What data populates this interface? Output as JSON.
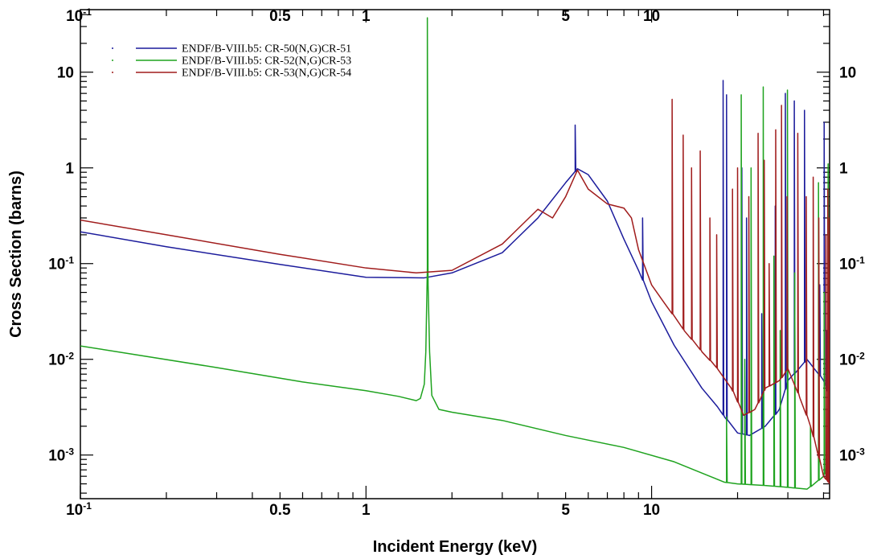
{
  "chart_data": {
    "type": "line",
    "title": "",
    "xlabel": "Incident Energy (keV)",
    "ylabel": "Cross Section (barns)",
    "x_scale": "log",
    "y_scale": "log",
    "xlim": [
      0.1,
      42
    ],
    "ylim": [
      0.00035,
      45
    ],
    "grid": false,
    "legend_position": "top-left",
    "x_ticks": [
      {
        "value": 0.1,
        "base": "10",
        "exp": "-1"
      },
      {
        "value": 0.5,
        "base": "0.5",
        "exp": ""
      },
      {
        "value": 1,
        "base": "1",
        "exp": ""
      },
      {
        "value": 5,
        "base": "5",
        "exp": ""
      },
      {
        "value": 10,
        "base": "10",
        "exp": ""
      }
    ],
    "y_ticks": [
      {
        "value": 0.001,
        "base": "10",
        "exp": "-3"
      },
      {
        "value": 0.01,
        "base": "10",
        "exp": "-2"
      },
      {
        "value": 0.1,
        "base": "10",
        "exp": "-1"
      },
      {
        "value": 1,
        "base": "1",
        "exp": ""
      },
      {
        "value": 10,
        "base": "10",
        "exp": ""
      }
    ],
    "series": [
      {
        "name": "ENDF/B-VIII.b5: CR-50(N,G)CR-51",
        "color": "#1c1c9c",
        "points": [
          [
            0.1,
            0.215
          ],
          [
            0.2,
            0.15
          ],
          [
            0.5,
            0.098
          ],
          [
            1.0,
            0.072
          ],
          [
            1.6,
            0.071
          ],
          [
            2.0,
            0.08
          ],
          [
            3.0,
            0.13
          ],
          [
            4.0,
            0.3
          ],
          [
            5.0,
            0.7
          ],
          [
            5.5,
            0.98
          ],
          [
            6.0,
            0.85
          ],
          [
            7.0,
            0.45
          ],
          [
            8.0,
            0.18
          ],
          [
            9.0,
            0.085
          ],
          [
            10,
            0.04
          ],
          [
            12,
            0.014
          ],
          [
            15,
            0.005
          ],
          [
            17,
            0.0032
          ],
          [
            18,
            0.0025
          ],
          [
            20,
            0.0017
          ],
          [
            22,
            0.0016
          ],
          [
            25,
            0.002
          ],
          [
            28,
            0.003
          ],
          [
            30,
            0.006
          ],
          [
            35,
            0.01
          ],
          [
            40,
            0.006
          ],
          [
            42,
            0.004
          ]
        ],
        "peaks": [
          [
            5.4,
            2.8
          ],
          [
            9.3,
            0.3
          ],
          [
            17.8,
            8.2
          ],
          [
            18.3,
            5.8
          ],
          [
            20.7,
            1.0
          ],
          [
            21.5,
            0.3
          ],
          [
            24.3,
            0.03
          ],
          [
            27.1,
            0.4
          ],
          [
            29.4,
            6.0
          ],
          [
            31.6,
            5.0
          ],
          [
            34.3,
            4.0
          ],
          [
            38.8,
            0.06
          ],
          [
            40.2,
            3.0
          ],
          [
            41.2,
            0.02
          ]
        ]
      },
      {
        "name": "ENDF/B-VIII.b5: CR-52(N,G)CR-53",
        "color": "#1fa31f",
        "points": [
          [
            0.1,
            0.0138
          ],
          [
            0.3,
            0.0082
          ],
          [
            0.6,
            0.0058
          ],
          [
            1.0,
            0.0047
          ],
          [
            1.3,
            0.0041
          ],
          [
            1.5,
            0.0037
          ],
          [
            1.55,
            0.0039
          ],
          [
            1.6,
            0.0055
          ],
          [
            1.62,
            0.012
          ],
          [
            1.64,
            0.09
          ],
          [
            1.65,
            0.06
          ],
          [
            1.67,
            0.012
          ],
          [
            1.7,
            0.0042
          ],
          [
            1.8,
            0.003
          ],
          [
            2.0,
            0.0028
          ],
          [
            3.0,
            0.0023
          ],
          [
            5.0,
            0.0016
          ],
          [
            8.0,
            0.0012
          ],
          [
            12,
            0.00085
          ],
          [
            16,
            0.0006
          ],
          [
            18,
            0.00052
          ],
          [
            20,
            0.0005
          ],
          [
            25,
            0.00048
          ],
          [
            30,
            0.00046
          ],
          [
            35,
            0.00044
          ],
          [
            40,
            0.0006
          ],
          [
            42,
            0.001
          ]
        ],
        "peaks": [
          [
            1.64,
            37
          ],
          [
            18.3,
            0.0025
          ],
          [
            20.6,
            5.8
          ],
          [
            21.2,
            0.01
          ],
          [
            22.3,
            1.0
          ],
          [
            24.6,
            7.0
          ],
          [
            26.8,
            0.12
          ],
          [
            28.2,
            0.02
          ],
          [
            29.9,
            6.5
          ],
          [
            31.7,
            0.08
          ],
          [
            36.0,
            0.002
          ],
          [
            38.4,
            0.7
          ],
          [
            40.2,
            0.05
          ],
          [
            41.5,
            1.1
          ]
        ]
      },
      {
        "name": "ENDF/B-VIII.b5: CR-53(N,G)CR-54",
        "color": "#a01c1c",
        "points": [
          [
            0.1,
            0.285
          ],
          [
            0.2,
            0.2
          ],
          [
            0.5,
            0.125
          ],
          [
            1.0,
            0.09
          ],
          [
            1.5,
            0.08
          ],
          [
            2.0,
            0.085
          ],
          [
            3.0,
            0.16
          ],
          [
            4.0,
            0.37
          ],
          [
            4.5,
            0.3
          ],
          [
            5.0,
            0.5
          ],
          [
            5.5,
            0.95
          ],
          [
            6.0,
            0.6
          ],
          [
            7.0,
            0.42
          ],
          [
            8.0,
            0.38
          ],
          [
            8.5,
            0.3
          ],
          [
            9.0,
            0.14
          ],
          [
            10,
            0.06
          ],
          [
            11,
            0.04
          ],
          [
            13,
            0.02
          ],
          [
            15,
            0.012
          ],
          [
            17,
            0.008
          ],
          [
            19,
            0.005
          ],
          [
            21,
            0.0026
          ],
          [
            23,
            0.003
          ],
          [
            25,
            0.005
          ],
          [
            28,
            0.006
          ],
          [
            30,
            0.008
          ],
          [
            33,
            0.004
          ],
          [
            36,
            0.002
          ],
          [
            40,
            0.0006
          ],
          [
            42,
            0.0005
          ]
        ],
        "peaks": [
          [
            11.8,
            5.2
          ],
          [
            12.9,
            2.2
          ],
          [
            13.8,
            1.0
          ],
          [
            14.8,
            1.5
          ],
          [
            16.0,
            0.3
          ],
          [
            16.9,
            0.2
          ],
          [
            19.2,
            0.6
          ],
          [
            20.0,
            1.0
          ],
          [
            21.9,
            0.5
          ],
          [
            23.6,
            2.3
          ],
          [
            24.8,
            1.2
          ],
          [
            25.8,
            0.1
          ],
          [
            27.2,
            2.5
          ],
          [
            28.5,
            4.5
          ],
          [
            29.8,
            0.5
          ],
          [
            32.5,
            2.3
          ],
          [
            34.8,
            0.5
          ],
          [
            36.8,
            0.8
          ],
          [
            38.5,
            0.3
          ],
          [
            40.8,
            0.2
          ],
          [
            41.4,
            0.6
          ],
          [
            41.9,
            0.3
          ]
        ]
      }
    ]
  }
}
